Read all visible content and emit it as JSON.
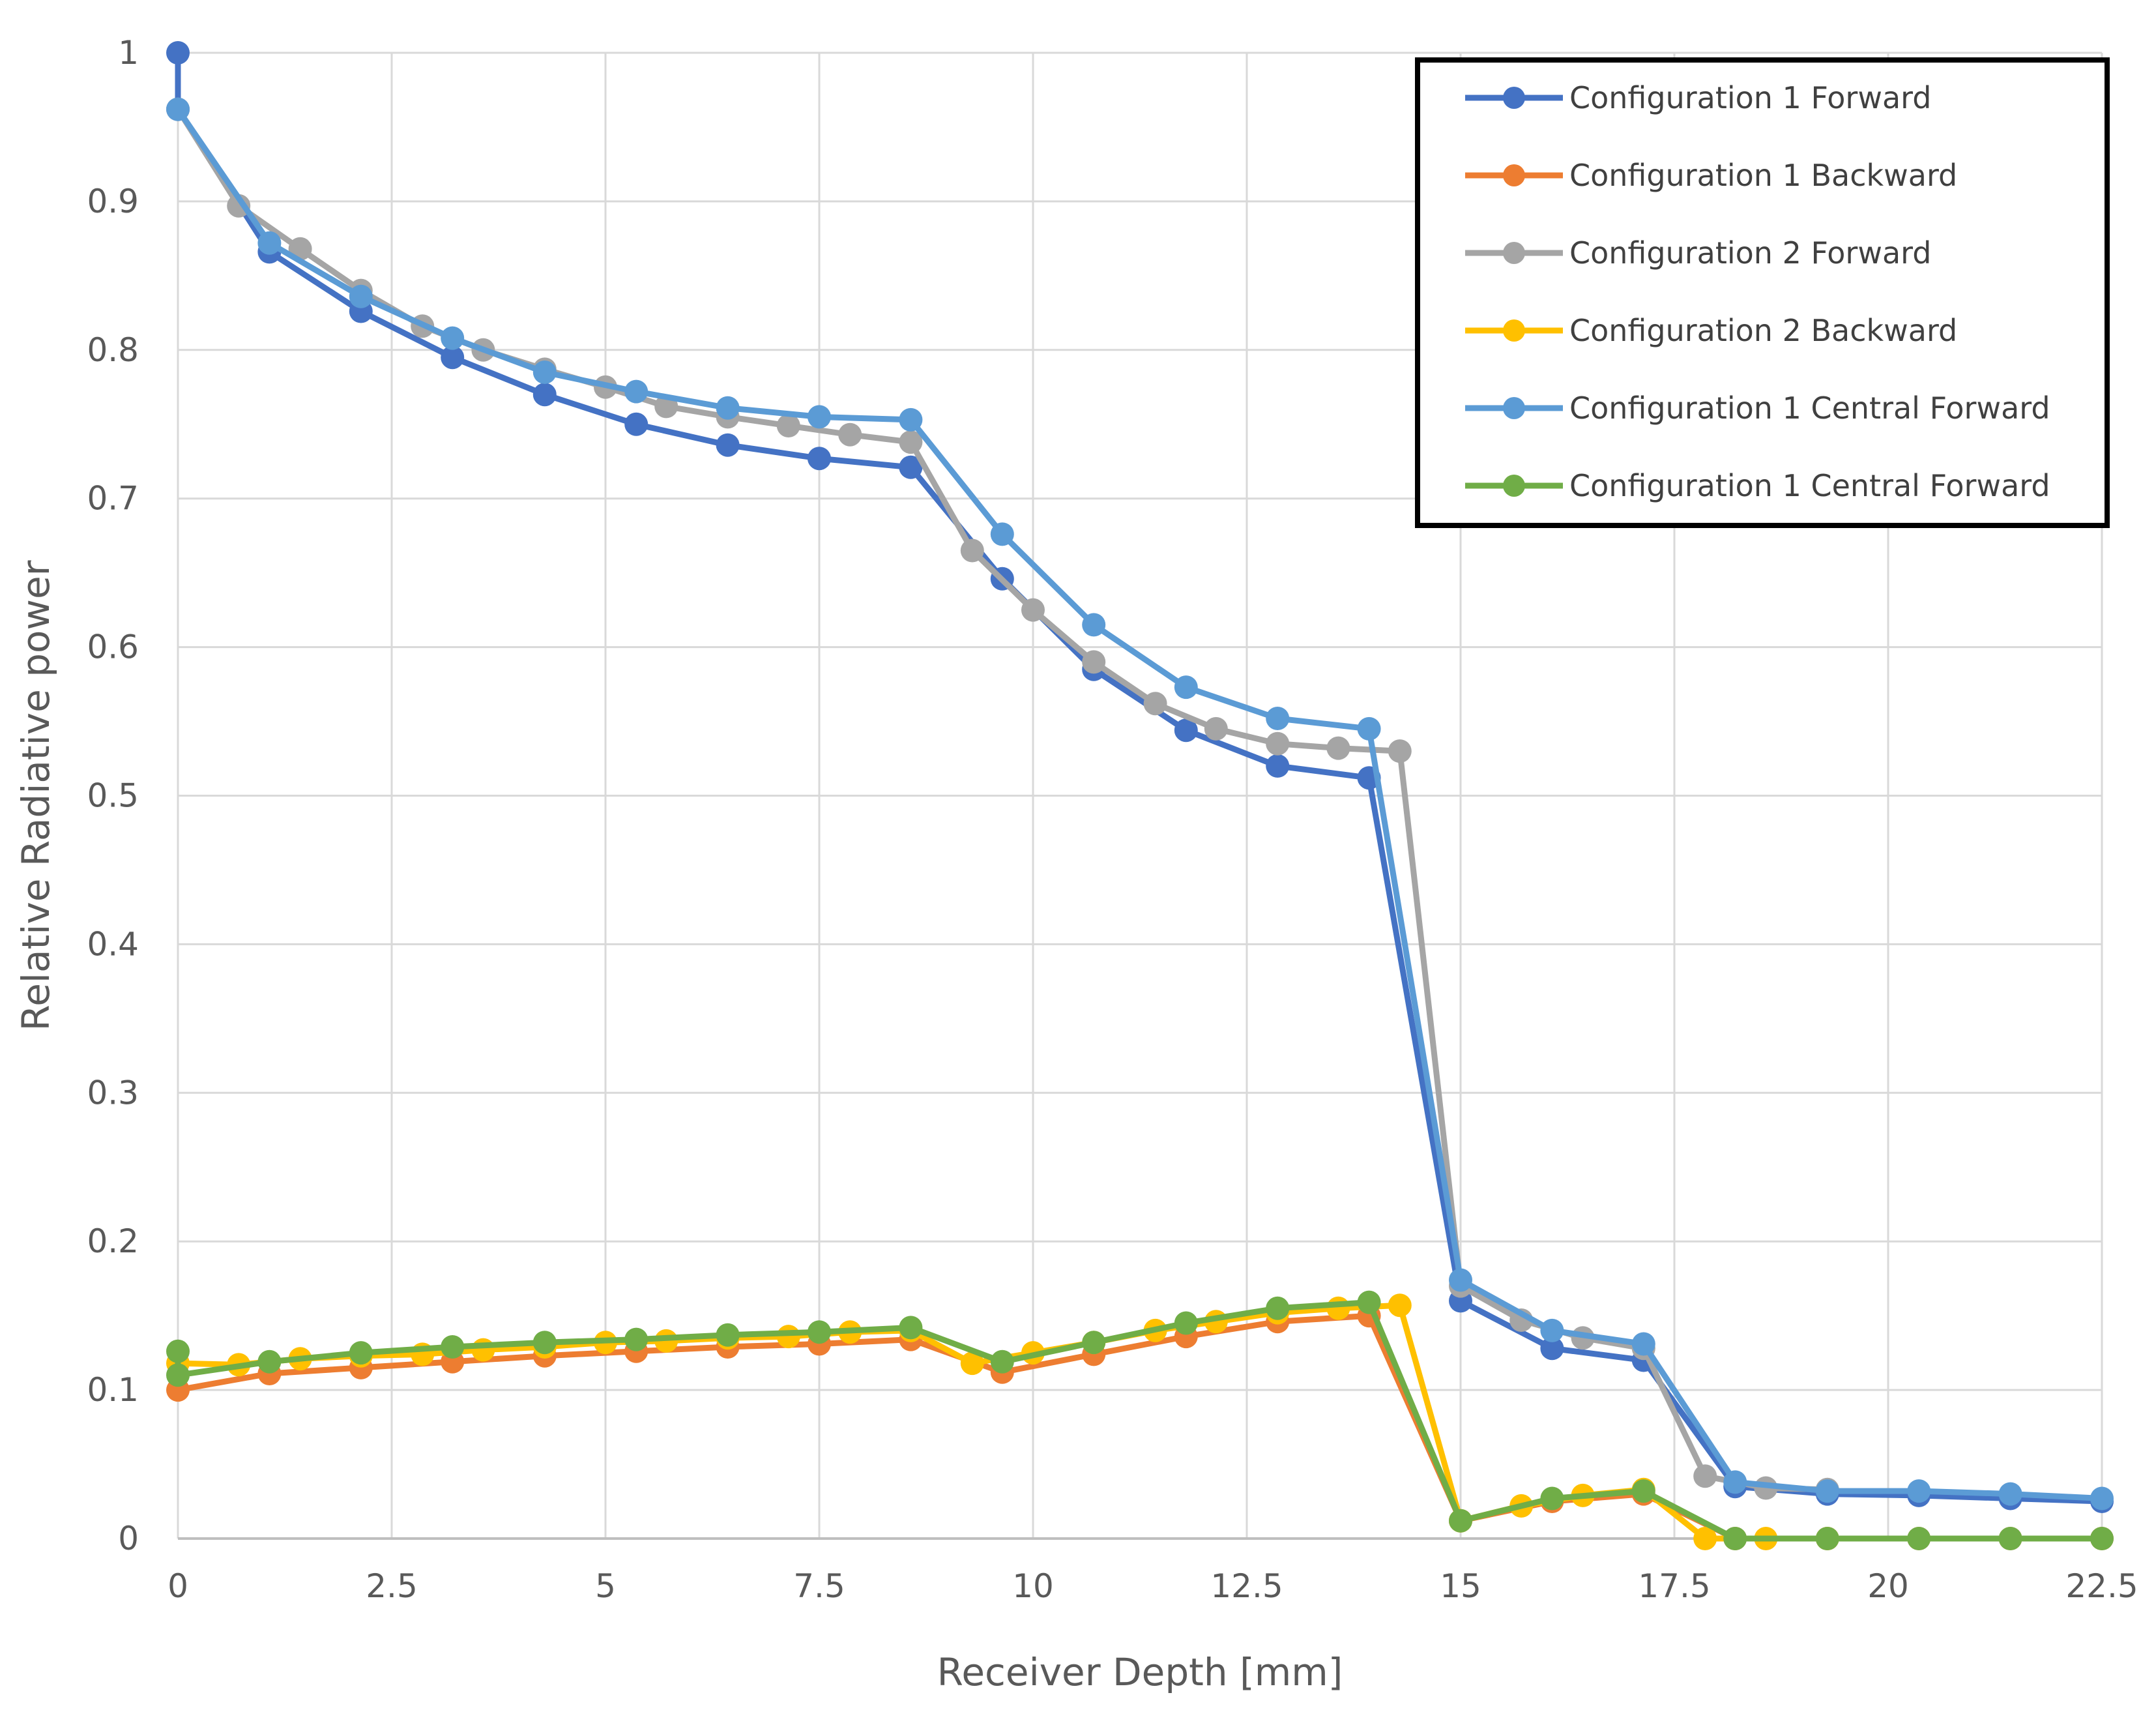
{
  "chart_data": {
    "type": "line",
    "xlabel": "Receiver Depth [mm]",
    "ylabel": "Relative Radiative power",
    "xlim": [
      0,
      22.5
    ],
    "ylim": [
      0,
      1
    ],
    "x_ticks": [
      "0",
      "2.5",
      "5",
      "7.5",
      "10",
      "12.5",
      "15",
      "17.5",
      "20",
      "22.5"
    ],
    "y_ticks": [
      "0",
      "0.1",
      "0.2",
      "0.3",
      "0.4",
      "0.5",
      "0.6",
      "0.7",
      "0.8",
      "0.9",
      "1"
    ],
    "grid": true,
    "legend_position": "top-right",
    "series": [
      {
        "name": "Configuration 1 Forward",
        "color": "#4472C4",
        "x": [
          0,
          0,
          1.07,
          2.14,
          3.21,
          4.29,
          5.36,
          6.43,
          7.5,
          8.57,
          9.64,
          10.71,
          11.79,
          12.86,
          13.93,
          15.0,
          16.07,
          17.14,
          18.21,
          19.29,
          20.36,
          21.43,
          22.5
        ],
        "y": [
          1.0,
          0.962,
          0.866,
          0.826,
          0.795,
          0.77,
          0.75,
          0.736,
          0.727,
          0.721,
          0.646,
          0.585,
          0.544,
          0.52,
          0.512,
          0.16,
          0.128,
          0.12,
          0.035,
          0.03,
          0.029,
          0.027,
          0.025
        ]
      },
      {
        "name": "Configuration 1 Backward",
        "color": "#ED7D31",
        "x": [
          0,
          1.07,
          2.14,
          3.21,
          4.29,
          5.36,
          6.43,
          7.5,
          8.57,
          9.64,
          10.71,
          11.79,
          12.86,
          13.93,
          15.0,
          16.07,
          17.14,
          18.21,
          19.29,
          20.36,
          21.43,
          22.5
        ],
        "y": [
          0.1,
          0.111,
          0.115,
          0.119,
          0.123,
          0.126,
          0.129,
          0.131,
          0.134,
          0.112,
          0.124,
          0.136,
          0.146,
          0.15,
          0.012,
          0.025,
          0.03,
          0.0,
          0.0,
          0.0,
          0.0,
          0.0
        ]
      },
      {
        "name": "Configuration 2 Forward",
        "color": "#A5A5A5",
        "x": [
          0,
          0.71,
          1.43,
          2.14,
          2.86,
          3.57,
          4.29,
          5.0,
          5.71,
          6.43,
          7.14,
          7.86,
          8.57,
          9.29,
          10.0,
          10.71,
          11.43,
          12.14,
          12.86,
          13.57,
          14.29,
          15.0,
          15.71,
          16.43,
          17.14,
          17.86,
          18.57,
          19.29
        ],
        "y": [
          0.962,
          0.897,
          0.868,
          0.84,
          0.816,
          0.8,
          0.787,
          0.775,
          0.762,
          0.755,
          0.749,
          0.743,
          0.738,
          0.665,
          0.625,
          0.59,
          0.562,
          0.545,
          0.535,
          0.532,
          0.53,
          0.17,
          0.147,
          0.135,
          0.128,
          0.042,
          0.034,
          0.033
        ]
      },
      {
        "name": "Configuration 2 Backward",
        "color": "#FFC000",
        "x": [
          0,
          0.71,
          1.43,
          2.14,
          2.86,
          3.57,
          4.29,
          5.0,
          5.71,
          6.43,
          7.14,
          7.86,
          8.57,
          9.29,
          10.0,
          10.71,
          11.43,
          12.14,
          12.86,
          13.57,
          14.29,
          15.0,
          15.71,
          16.43,
          17.14,
          17.86,
          18.57,
          19.29
        ],
        "y": [
          0.118,
          0.117,
          0.121,
          0.123,
          0.124,
          0.127,
          0.129,
          0.132,
          0.133,
          0.135,
          0.136,
          0.139,
          0.14,
          0.118,
          0.125,
          0.132,
          0.14,
          0.146,
          0.152,
          0.155,
          0.157,
          0.012,
          0.022,
          0.029,
          0.033,
          0.0,
          0.0,
          0.0
        ]
      },
      {
        "name": "Configuration 1 Central Forward",
        "color": "#5B9BD5",
        "x": [
          0,
          1.07,
          2.14,
          3.21,
          4.29,
          5.36,
          6.43,
          7.5,
          8.57,
          9.64,
          10.71,
          11.79,
          12.86,
          13.93,
          15.0,
          16.07,
          17.14,
          18.21,
          19.29,
          20.36,
          21.43,
          22.5
        ],
        "y": [
          0.962,
          0.872,
          0.836,
          0.808,
          0.785,
          0.772,
          0.761,
          0.755,
          0.753,
          0.676,
          0.615,
          0.573,
          0.552,
          0.545,
          0.174,
          0.14,
          0.131,
          0.038,
          0.032,
          0.032,
          0.03,
          0.027
        ]
      },
      {
        "name": "Configuration 1 Central Forward",
        "color": "#70AD47",
        "x": [
          0,
          0,
          1.07,
          2.14,
          3.21,
          4.29,
          5.36,
          6.43,
          7.5,
          8.57,
          9.64,
          10.71,
          11.79,
          12.86,
          13.93,
          15.0,
          16.07,
          17.14,
          18.21,
          19.29,
          20.36,
          21.43,
          22.5
        ],
        "y": [
          0.126,
          0.11,
          0.119,
          0.125,
          0.129,
          0.132,
          0.134,
          0.137,
          0.139,
          0.142,
          0.119,
          0.132,
          0.145,
          0.155,
          0.159,
          0.012,
          0.027,
          0.032,
          0.0,
          0.0,
          0.0,
          0.0,
          0.0
        ]
      }
    ]
  }
}
